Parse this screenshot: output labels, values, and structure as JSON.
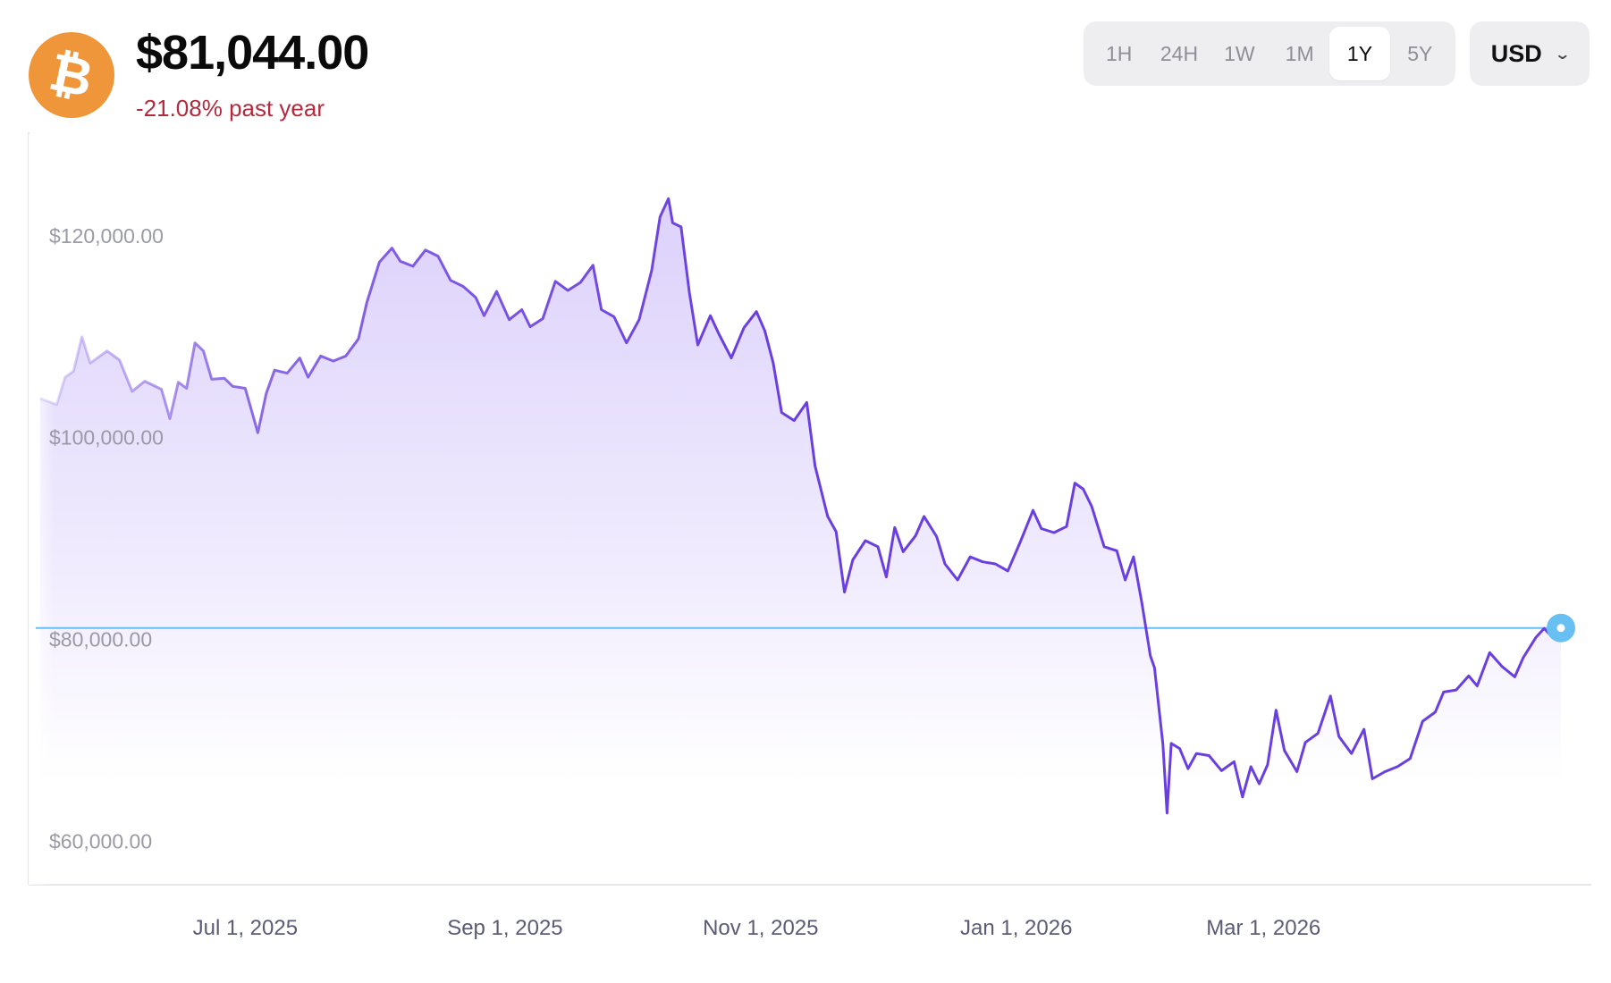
{
  "coin": {
    "symbol_glyph": "₿",
    "color": "#f0963a"
  },
  "header": {
    "price": "$81,044.00",
    "change": "-21.08% past year",
    "change_color": "#b42a3c"
  },
  "range_selector": {
    "options": [
      "1H",
      "24H",
      "1W",
      "1M",
      "1Y",
      "5Y"
    ],
    "selected": "1Y"
  },
  "currency_select": {
    "value": "USD",
    "icon": "chevron-down-icon"
  },
  "colors": {
    "line": "#6a3fe0",
    "fill": "#d6c9fb",
    "current_line": "#67bff2",
    "axis": "#e6e6ea"
  },
  "chart_data": {
    "type": "line",
    "ylim": [
      55600,
      130000
    ],
    "yticks": [
      {
        "value": 120000,
        "label": "$120,000.00"
      },
      {
        "value": 100000,
        "label": "$100,000.00"
      },
      {
        "value": 80000,
        "label": "$80,000.00"
      },
      {
        "value": 60000,
        "label": "$60,000.00"
      }
    ],
    "xticks": [
      {
        "date": "2025-07-01",
        "label": "Jul 1, 2025"
      },
      {
        "date": "2025-09-01",
        "label": "Sep 1, 2025"
      },
      {
        "date": "2025-11-01",
        "label": "Nov 1, 2025"
      },
      {
        "date": "2026-01-01",
        "label": "Jan 1, 2026"
      },
      {
        "date": "2026-03-01",
        "label": "Mar 1, 2026"
      }
    ],
    "current_value": 81044,
    "series": [
      {
        "points": [
          [
            "2025-05-13",
            103800
          ],
          [
            "2025-05-17",
            103200
          ],
          [
            "2025-05-19",
            105900
          ],
          [
            "2025-05-21",
            106500
          ],
          [
            "2025-05-23",
            109900
          ],
          [
            "2025-05-25",
            107300
          ],
          [
            "2025-05-29",
            108500
          ],
          [
            "2025-06-01",
            107600
          ],
          [
            "2025-06-04",
            104500
          ],
          [
            "2025-06-07",
            105500
          ],
          [
            "2025-06-11",
            104700
          ],
          [
            "2025-06-13",
            101800
          ],
          [
            "2025-06-15",
            105400
          ],
          [
            "2025-06-17",
            104800
          ],
          [
            "2025-06-19",
            109300
          ],
          [
            "2025-06-21",
            108500
          ],
          [
            "2025-06-23",
            105700
          ],
          [
            "2025-06-26",
            105800
          ],
          [
            "2025-06-28",
            105000
          ],
          [
            "2025-07-01",
            104800
          ],
          [
            "2025-07-04",
            100400
          ],
          [
            "2025-07-06",
            104300
          ],
          [
            "2025-07-08",
            106600
          ],
          [
            "2025-07-11",
            106300
          ],
          [
            "2025-07-14",
            107800
          ],
          [
            "2025-07-16",
            105900
          ],
          [
            "2025-07-19",
            108000
          ],
          [
            "2025-07-22",
            107500
          ],
          [
            "2025-07-25",
            108000
          ],
          [
            "2025-07-28",
            109700
          ],
          [
            "2025-07-30",
            113300
          ],
          [
            "2025-08-02",
            117300
          ],
          [
            "2025-08-05",
            118700
          ],
          [
            "2025-08-07",
            117400
          ],
          [
            "2025-08-10",
            116900
          ],
          [
            "2025-08-13",
            118500
          ],
          [
            "2025-08-16",
            117900
          ],
          [
            "2025-08-19",
            115500
          ],
          [
            "2025-08-22",
            114900
          ],
          [
            "2025-08-25",
            113800
          ],
          [
            "2025-08-27",
            112000
          ],
          [
            "2025-08-30",
            114400
          ],
          [
            "2025-09-02",
            111600
          ],
          [
            "2025-09-05",
            112600
          ],
          [
            "2025-09-07",
            110900
          ],
          [
            "2025-09-10",
            111700
          ],
          [
            "2025-09-13",
            115400
          ],
          [
            "2025-09-16",
            114500
          ],
          [
            "2025-09-19",
            115300
          ],
          [
            "2025-09-22",
            117000
          ],
          [
            "2025-09-24",
            112600
          ],
          [
            "2025-09-27",
            111900
          ],
          [
            "2025-09-30",
            109300
          ],
          [
            "2025-10-03",
            111600
          ],
          [
            "2025-10-06",
            116500
          ],
          [
            "2025-10-08",
            121800
          ],
          [
            "2025-10-10",
            123600
          ],
          [
            "2025-10-11",
            121200
          ],
          [
            "2025-10-13",
            120800
          ],
          [
            "2025-10-15",
            114300
          ],
          [
            "2025-10-17",
            109100
          ],
          [
            "2025-10-20",
            112000
          ],
          [
            "2025-10-22",
            110200
          ],
          [
            "2025-10-25",
            107800
          ],
          [
            "2025-10-28",
            110800
          ],
          [
            "2025-10-31",
            112400
          ],
          [
            "2025-11-02",
            110500
          ],
          [
            "2025-11-04",
            107300
          ],
          [
            "2025-11-06",
            102400
          ],
          [
            "2025-11-09",
            101600
          ],
          [
            "2025-11-12",
            103400
          ],
          [
            "2025-11-14",
            97100
          ],
          [
            "2025-11-17",
            92100
          ],
          [
            "2025-11-19",
            90600
          ],
          [
            "2025-11-21",
            84600
          ],
          [
            "2025-11-23",
            87800
          ],
          [
            "2025-11-26",
            89700
          ],
          [
            "2025-11-29",
            89100
          ],
          [
            "2025-12-01",
            86100
          ],
          [
            "2025-12-03",
            91000
          ],
          [
            "2025-12-05",
            88600
          ],
          [
            "2025-12-08",
            90200
          ],
          [
            "2025-12-10",
            92100
          ],
          [
            "2025-12-13",
            90100
          ],
          [
            "2025-12-15",
            87400
          ],
          [
            "2025-12-18",
            85800
          ],
          [
            "2025-12-21",
            88100
          ],
          [
            "2025-12-24",
            87600
          ],
          [
            "2025-12-27",
            87400
          ],
          [
            "2025-12-30",
            86700
          ],
          [
            "2026-01-02",
            89600
          ],
          [
            "2026-01-05",
            92700
          ],
          [
            "2026-01-07",
            90900
          ],
          [
            "2026-01-10",
            90500
          ],
          [
            "2026-01-13",
            91100
          ],
          [
            "2026-01-15",
            95400
          ],
          [
            "2026-01-17",
            94800
          ],
          [
            "2026-01-19",
            93100
          ],
          [
            "2026-01-22",
            89100
          ],
          [
            "2026-01-25",
            88700
          ],
          [
            "2026-01-27",
            85800
          ],
          [
            "2026-01-29",
            88100
          ],
          [
            "2026-01-31",
            83500
          ],
          [
            "2026-02-02",
            78300
          ],
          [
            "2026-02-03",
            77100
          ],
          [
            "2026-02-05",
            69500
          ],
          [
            "2026-02-06",
            62700
          ],
          [
            "2026-02-07",
            69600
          ],
          [
            "2026-02-09",
            69100
          ],
          [
            "2026-02-11",
            67100
          ],
          [
            "2026-02-13",
            68600
          ],
          [
            "2026-02-16",
            68400
          ],
          [
            "2026-02-19",
            66900
          ],
          [
            "2026-02-22",
            67800
          ],
          [
            "2026-02-24",
            64300
          ],
          [
            "2026-02-26",
            67300
          ],
          [
            "2026-02-28",
            65600
          ],
          [
            "2026-03-02",
            67500
          ],
          [
            "2026-03-04",
            72900
          ],
          [
            "2026-03-06",
            68900
          ],
          [
            "2026-03-09",
            66800
          ],
          [
            "2026-03-11",
            69700
          ],
          [
            "2026-03-14",
            70600
          ],
          [
            "2026-03-17",
            74300
          ],
          [
            "2026-03-19",
            70300
          ],
          [
            "2026-03-22",
            68600
          ],
          [
            "2026-03-25",
            71000
          ],
          [
            "2026-03-27",
            66100
          ],
          [
            "2026-03-30",
            66800
          ],
          [
            "2026-04-02",
            67300
          ],
          [
            "2026-04-05",
            68100
          ],
          [
            "2026-04-08",
            71800
          ],
          [
            "2026-04-11",
            72700
          ],
          [
            "2026-04-13",
            74700
          ],
          [
            "2026-04-16",
            74900
          ],
          [
            "2026-04-19",
            76300
          ],
          [
            "2026-04-21",
            75300
          ],
          [
            "2026-04-24",
            78600
          ],
          [
            "2026-04-27",
            77200
          ],
          [
            "2026-04-30",
            76200
          ],
          [
            "2026-05-02",
            78100
          ],
          [
            "2026-05-05",
            80100
          ],
          [
            "2026-05-07",
            81000
          ],
          [
            "2026-05-09",
            80100
          ],
          [
            "2026-05-11",
            81044
          ]
        ]
      }
    ]
  }
}
